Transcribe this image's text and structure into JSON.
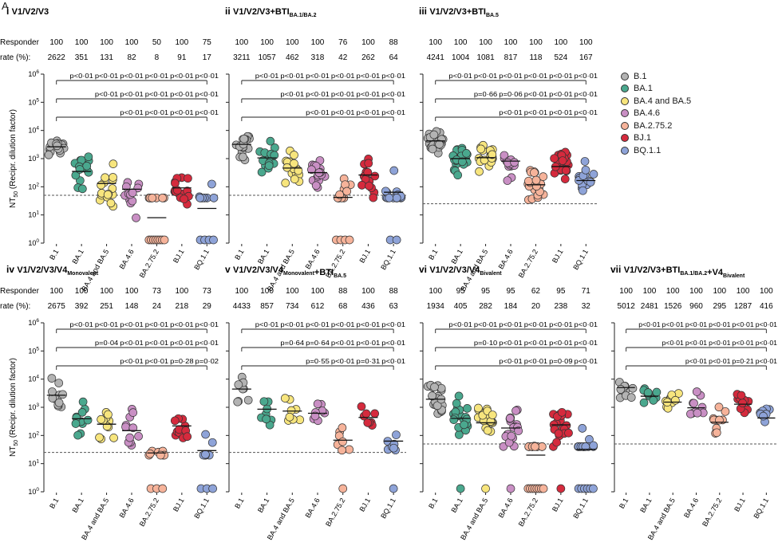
{
  "figure_label": "A",
  "y_axis_label": "NT50 (Recipr. dilution factor)",
  "y_axis_label_main": "NT",
  "y_axis_label_sub": "50",
  "y_axis_label_rest": " (Recipr. dilution factor)",
  "responder_label_1": "Responder",
  "responder_label_2": "rate (%):",
  "colors": {
    "B.1": "#b3b3b3",
    "BA.1": "#4aa88e",
    "BA.4 and BA.5": "#f7e57d",
    "BA.4.6": "#c98fc4",
    "BA.2.75.2": "#f6b39a",
    "BJ.1": "#d52a3d",
    "BQ.1.1": "#8ea3d8"
  },
  "legend": [
    {
      "label": "B.1",
      "key": "B.1"
    },
    {
      "label": "BA.1",
      "key": "BA.1"
    },
    {
      "label": "BA.4 and BA.5",
      "key": "BA.4 and BA.5"
    },
    {
      "label": "BA.4.6",
      "key": "BA.4.6"
    },
    {
      "label": "BA.2.75.2",
      "key": "BA.2.75.2"
    },
    {
      "label": "BJ.1",
      "key": "BJ.1"
    },
    {
      "label": "BQ.1.1",
      "key": "BQ.1.1"
    }
  ],
  "chart_data": [
    {
      "type": "scatter",
      "roman": "i",
      "title_parts": [
        {
          "t": "V1/V2/V3"
        }
      ],
      "categories": [
        "B.1",
        "BA.1",
        "BA.4 and BA.5",
        "BA.4.6",
        "BA.2.75.2",
        "BJ.1",
        "BQ.1.1"
      ],
      "responder_rate": [
        "100",
        "100",
        "100",
        "100",
        "50",
        "100",
        "75"
      ],
      "gmt": [
        "2622",
        "351",
        "131",
        "82",
        "8",
        "91",
        "17"
      ],
      "gmt_values": [
        2622,
        351,
        131,
        82,
        8,
        91,
        17
      ],
      "lod": 50,
      "yscale": "log",
      "ylim": [
        1,
        1000000
      ],
      "yticks": [
        "10⁰",
        "10¹",
        "10²",
        "10³",
        "10⁴",
        "10⁵",
        "10⁶"
      ],
      "n": [
        16,
        16,
        16,
        12,
        16,
        16,
        12
      ],
      "n_at_floor": [
        0,
        0,
        0,
        0,
        8,
        0,
        4
      ],
      "spread": [
        0.2,
        0.25,
        0.35,
        0.4,
        0.3,
        0.35,
        0.35
      ],
      "comparisons": [
        {
          "to": 1,
          "p": [
            "p<0·01",
            "p<0·01",
            "p<0·01",
            "p<0·01",
            "p<0·01",
            "p<0·01"
          ]
        },
        {
          "to": 2,
          "p": [
            "p<0·01",
            "p<0·01",
            "p<0·01",
            "p<0·01",
            "p<0·01"
          ]
        },
        {
          "to": 3,
          "p": [
            "p<0·01",
            "p<0·01",
            "p<0·01",
            "p<0·01"
          ]
        }
      ]
    },
    {
      "type": "scatter",
      "roman": "ii",
      "title_parts": [
        {
          "t": "V1/V2/V3+BTI"
        },
        {
          "t": "BA.1/BA.2",
          "sub": true
        }
      ],
      "categories": [
        "B.1",
        "BA.1",
        "BA.4 and BA.5",
        "BA.4.6",
        "BA.2.75.2",
        "BJ.1",
        "BQ.1.1"
      ],
      "responder_rate": [
        "100",
        "100",
        "100",
        "100",
        "76",
        "100",
        "88"
      ],
      "gmt": [
        "3211",
        "1057",
        "462",
        "318",
        "42",
        "262",
        "64"
      ],
      "gmt_values": [
        3211,
        1057,
        462,
        318,
        42,
        262,
        64
      ],
      "lod": 50,
      "yscale": "log",
      "ylim": [
        1,
        1000000
      ],
      "yticks": [
        "10⁰",
        "10¹",
        "10²",
        "10³",
        "10⁴",
        "10⁵",
        "10⁶"
      ],
      "n": [
        17,
        17,
        17,
        17,
        17,
        17,
        17
      ],
      "n_at_floor": [
        0,
        0,
        0,
        0,
        4,
        0,
        2
      ],
      "spread": [
        0.3,
        0.3,
        0.3,
        0.3,
        0.3,
        0.35,
        0.4
      ],
      "comparisons": [
        {
          "to": 1,
          "p": [
            "p<0·01",
            "p<0·01",
            "p<0·01",
            "p<0·01",
            "p<0·01",
            "p<0·01"
          ]
        },
        {
          "to": 2,
          "p": [
            "p<0·01",
            "p<0·01",
            "p<0·01",
            "p<0·01",
            "p<0·01"
          ]
        },
        {
          "to": 3,
          "p": [
            "p<0·01",
            "p<0·01",
            "p<0·01",
            "p<0·01"
          ]
        }
      ]
    },
    {
      "type": "scatter",
      "roman": "iii",
      "title_parts": [
        {
          "t": "V1/V2/V3+BTI"
        },
        {
          "t": "BA.5",
          "sub": true
        }
      ],
      "categories": [
        "B.1",
        "BA.1",
        "BA.4 and BA.5",
        "BA.4.6",
        "BA.2.75.2",
        "BJ.1",
        "BQ.1.1"
      ],
      "responder_rate": [
        "100",
        "100",
        "100",
        "100",
        "100",
        "100",
        "100"
      ],
      "gmt": [
        "4241",
        "1004",
        "1081",
        "817",
        "118",
        "524",
        "167"
      ],
      "gmt_values": [
        4241,
        1004,
        1081,
        817,
        118,
        524,
        167
      ],
      "lod": 25,
      "yscale": "log",
      "ylim": [
        1,
        1000000
      ],
      "yticks": [
        "10⁰",
        "10¹",
        "10²",
        "10³",
        "10⁴",
        "10⁵",
        "10⁶"
      ],
      "n": [
        24,
        24,
        24,
        16,
        24,
        24,
        16
      ],
      "n_at_floor": [
        0,
        0,
        0,
        0,
        0,
        0,
        0
      ],
      "spread": [
        0.2,
        0.25,
        0.2,
        0.3,
        0.3,
        0.3,
        0.4
      ],
      "comparisons": [
        {
          "to": 1,
          "p": [
            "p<0·01",
            "p<0·01",
            "p<0·01",
            "p<0·01",
            "p<0·01",
            "p<0·01"
          ]
        },
        {
          "to": 2,
          "p": [
            "p=0·66",
            "p=0·06",
            "p<0·01",
            "p<0·01",
            "p<0·01"
          ]
        },
        {
          "to": 3,
          "p": [
            "p<0·01",
            "p<0·01",
            "p<0·01",
            "p<0·01"
          ]
        }
      ]
    },
    {
      "type": "scatter",
      "roman": "iv",
      "title_parts": [
        {
          "t": "V1/V2/V3/V4"
        },
        {
          "t": "Monovalent",
          "sub": true
        }
      ],
      "categories": [
        "B.1",
        "BA.1",
        "BA.4 and BA.5",
        "BA.4.6",
        "BA.2.75.2",
        "BJ.1",
        "BQ.1.1"
      ],
      "responder_rate": [
        "100",
        "100",
        "100",
        "100",
        "73",
        "100",
        "73"
      ],
      "gmt": [
        "2675",
        "392",
        "251",
        "148",
        "24",
        "218",
        "29"
      ],
      "gmt_values": [
        2675,
        392,
        251,
        148,
        24,
        218,
        29
      ],
      "lod": 25,
      "yscale": "log",
      "ylim": [
        1,
        1000000
      ],
      "yticks": [
        "10⁰",
        "10¹",
        "10²",
        "10³",
        "10⁴",
        "10⁵",
        "10⁶"
      ],
      "n": [
        11,
        11,
        11,
        11,
        11,
        11,
        11
      ],
      "n_at_floor": [
        0,
        0,
        0,
        0,
        3,
        0,
        3
      ],
      "spread": [
        0.3,
        0.3,
        0.3,
        0.35,
        0.35,
        0.3,
        0.35
      ],
      "comparisons": [
        {
          "to": 1,
          "p": [
            "p<0·01",
            "p<0·01",
            "p<0·01",
            "p<0·01",
            "p<0·01",
            "p<0·01"
          ]
        },
        {
          "to": 2,
          "p": [
            "p=0·04",
            "p<0·01",
            "p<0·01",
            "p<0·01",
            "p<0·01"
          ]
        },
        {
          "to": 3,
          "p": [
            "p<0·01",
            "p<0·01",
            "p=0·28",
            "p=0·02"
          ]
        }
      ]
    },
    {
      "type": "scatter",
      "roman": "v",
      "title_parts": [
        {
          "t": "V1/V2/V3/V4"
        },
        {
          "t": "Monovalent",
          "sub": true
        },
        {
          "t": "+BTI"
        },
        {
          "t": "BA.5",
          "sub": true
        }
      ],
      "categories": [
        "B.1",
        "BA.1",
        "BA.4 and BA.5",
        "BA.4.6",
        "BA.2.75.2",
        "BJ.1",
        "BQ.1.1"
      ],
      "responder_rate": [
        "100",
        "100",
        "100",
        "100",
        "88",
        "100",
        "88"
      ],
      "gmt": [
        "4433",
        "857",
        "734",
        "612",
        "68",
        "436",
        "63"
      ],
      "gmt_values": [
        4433,
        857,
        734,
        612,
        68,
        436,
        63
      ],
      "lod": 25,
      "yscale": "log",
      "ylim": [
        1,
        1000000
      ],
      "yticks": [
        "10⁰",
        "10¹",
        "10²",
        "10³",
        "10⁴",
        "10⁵",
        "10⁶"
      ],
      "n": [
        8,
        8,
        8,
        8,
        8,
        8,
        8
      ],
      "n_at_floor": [
        0,
        0,
        0,
        0,
        1,
        0,
        1
      ],
      "spread": [
        0.3,
        0.3,
        0.3,
        0.3,
        0.35,
        0.3,
        0.35
      ],
      "comparisons": [
        {
          "to": 1,
          "p": [
            "p<0·01",
            "p<0·01",
            "p<0·01",
            "p<0·01",
            "p<0·01",
            "p<0·01"
          ]
        },
        {
          "to": 2,
          "p": [
            "p=0·64",
            "p=0·64",
            "p<0·01",
            "p<0·01",
            "p<0·01"
          ]
        },
        {
          "to": 3,
          "p": [
            "p=0·55",
            "p<0·01",
            "p=0·31",
            "p<0·01"
          ]
        }
      ]
    },
    {
      "type": "scatter",
      "roman": "vi",
      "title_parts": [
        {
          "t": "V1/V2/V3/V4"
        },
        {
          "t": "Bivalent",
          "sub": true
        }
      ],
      "categories": [
        "B.1",
        "BA.1",
        "BA.4 and BA.5",
        "BA.4.6",
        "BA.2.75.2",
        "BJ.1",
        "BQ.1.1"
      ],
      "responder_rate": [
        "100",
        "95",
        "95",
        "95",
        "62",
        "95",
        "71"
      ],
      "gmt": [
        "1934",
        "405",
        "282",
        "184",
        "20",
        "238",
        "32"
      ],
      "gmt_values": [
        1934,
        405,
        282,
        184,
        20,
        238,
        32
      ],
      "lod": 50,
      "yscale": "log",
      "ylim": [
        1,
        1000000
      ],
      "yticks": [
        "10⁰",
        "10¹",
        "10²",
        "10³",
        "10⁴",
        "10⁵",
        "10⁶"
      ],
      "n": [
        21,
        21,
        21,
        21,
        21,
        21,
        21
      ],
      "n_at_floor": [
        0,
        1,
        1,
        1,
        8,
        1,
        6
      ],
      "spread": [
        0.3,
        0.3,
        0.35,
        0.35,
        0.35,
        0.35,
        0.4
      ],
      "comparisons": [
        {
          "to": 1,
          "p": [
            "p<0·01",
            "p<0·01",
            "p<0·01",
            "p<0·01",
            "p<0·01",
            "p<0·01"
          ]
        },
        {
          "to": 2,
          "p": [
            "p=0·10",
            "p<0·01",
            "p<0·01",
            "p<0·01",
            "p<0·01"
          ]
        },
        {
          "to": 3,
          "p": [
            "p<0·01",
            "p<0·01",
            "p=0·09",
            "p<0·01"
          ]
        }
      ]
    },
    {
      "type": "scatter",
      "roman": "vii",
      "title_parts": [
        {
          "t": "V1/V2/V3+BTI"
        },
        {
          "t": "BA.1/BA.2",
          "sub": true
        },
        {
          "t": "+V4"
        },
        {
          "t": "Bivalent",
          "sub": true
        }
      ],
      "categories": [
        "B.1",
        "BA.1",
        "BA.4 and BA.5",
        "BA.4.6",
        "BA.2.75.2",
        "BJ.1",
        "BQ.1.1"
      ],
      "responder_rate": [
        "100",
        "100",
        "100",
        "100",
        "100",
        "100",
        "100"
      ],
      "gmt": [
        "5012",
        "2481",
        "1526",
        "960",
        "295",
        "1287",
        "416"
      ],
      "gmt_values": [
        5012,
        2481,
        1526,
        960,
        295,
        1287,
        416
      ],
      "lod": 50,
      "yscale": "log",
      "ylim": [
        1,
        1000000
      ],
      "yticks": [
        "10⁰",
        "10¹",
        "10²",
        "10³",
        "10⁴",
        "10⁵",
        "10⁶"
      ],
      "n": [
        10,
        10,
        10,
        10,
        10,
        10,
        10
      ],
      "n_at_floor": [
        0,
        0,
        0,
        0,
        0,
        0,
        0
      ],
      "spread": [
        0.2,
        0.2,
        0.25,
        0.25,
        0.3,
        0.25,
        0.25
      ],
      "comparisons": [
        {
          "to": 1,
          "p": [
            "p<0·01",
            "p<0·01",
            "p<0·01",
            "p<0·01",
            "p<0·01",
            "p<0·01"
          ]
        },
        {
          "to": 2,
          "p": [
            "p<0·01",
            "p<0·01",
            "p<0·01",
            "p<0·01",
            "p<0·01"
          ]
        },
        {
          "to": 3,
          "p": [
            "p<0·01",
            "p<0·01",
            "p=0·21",
            "p<0·01"
          ]
        }
      ]
    }
  ]
}
